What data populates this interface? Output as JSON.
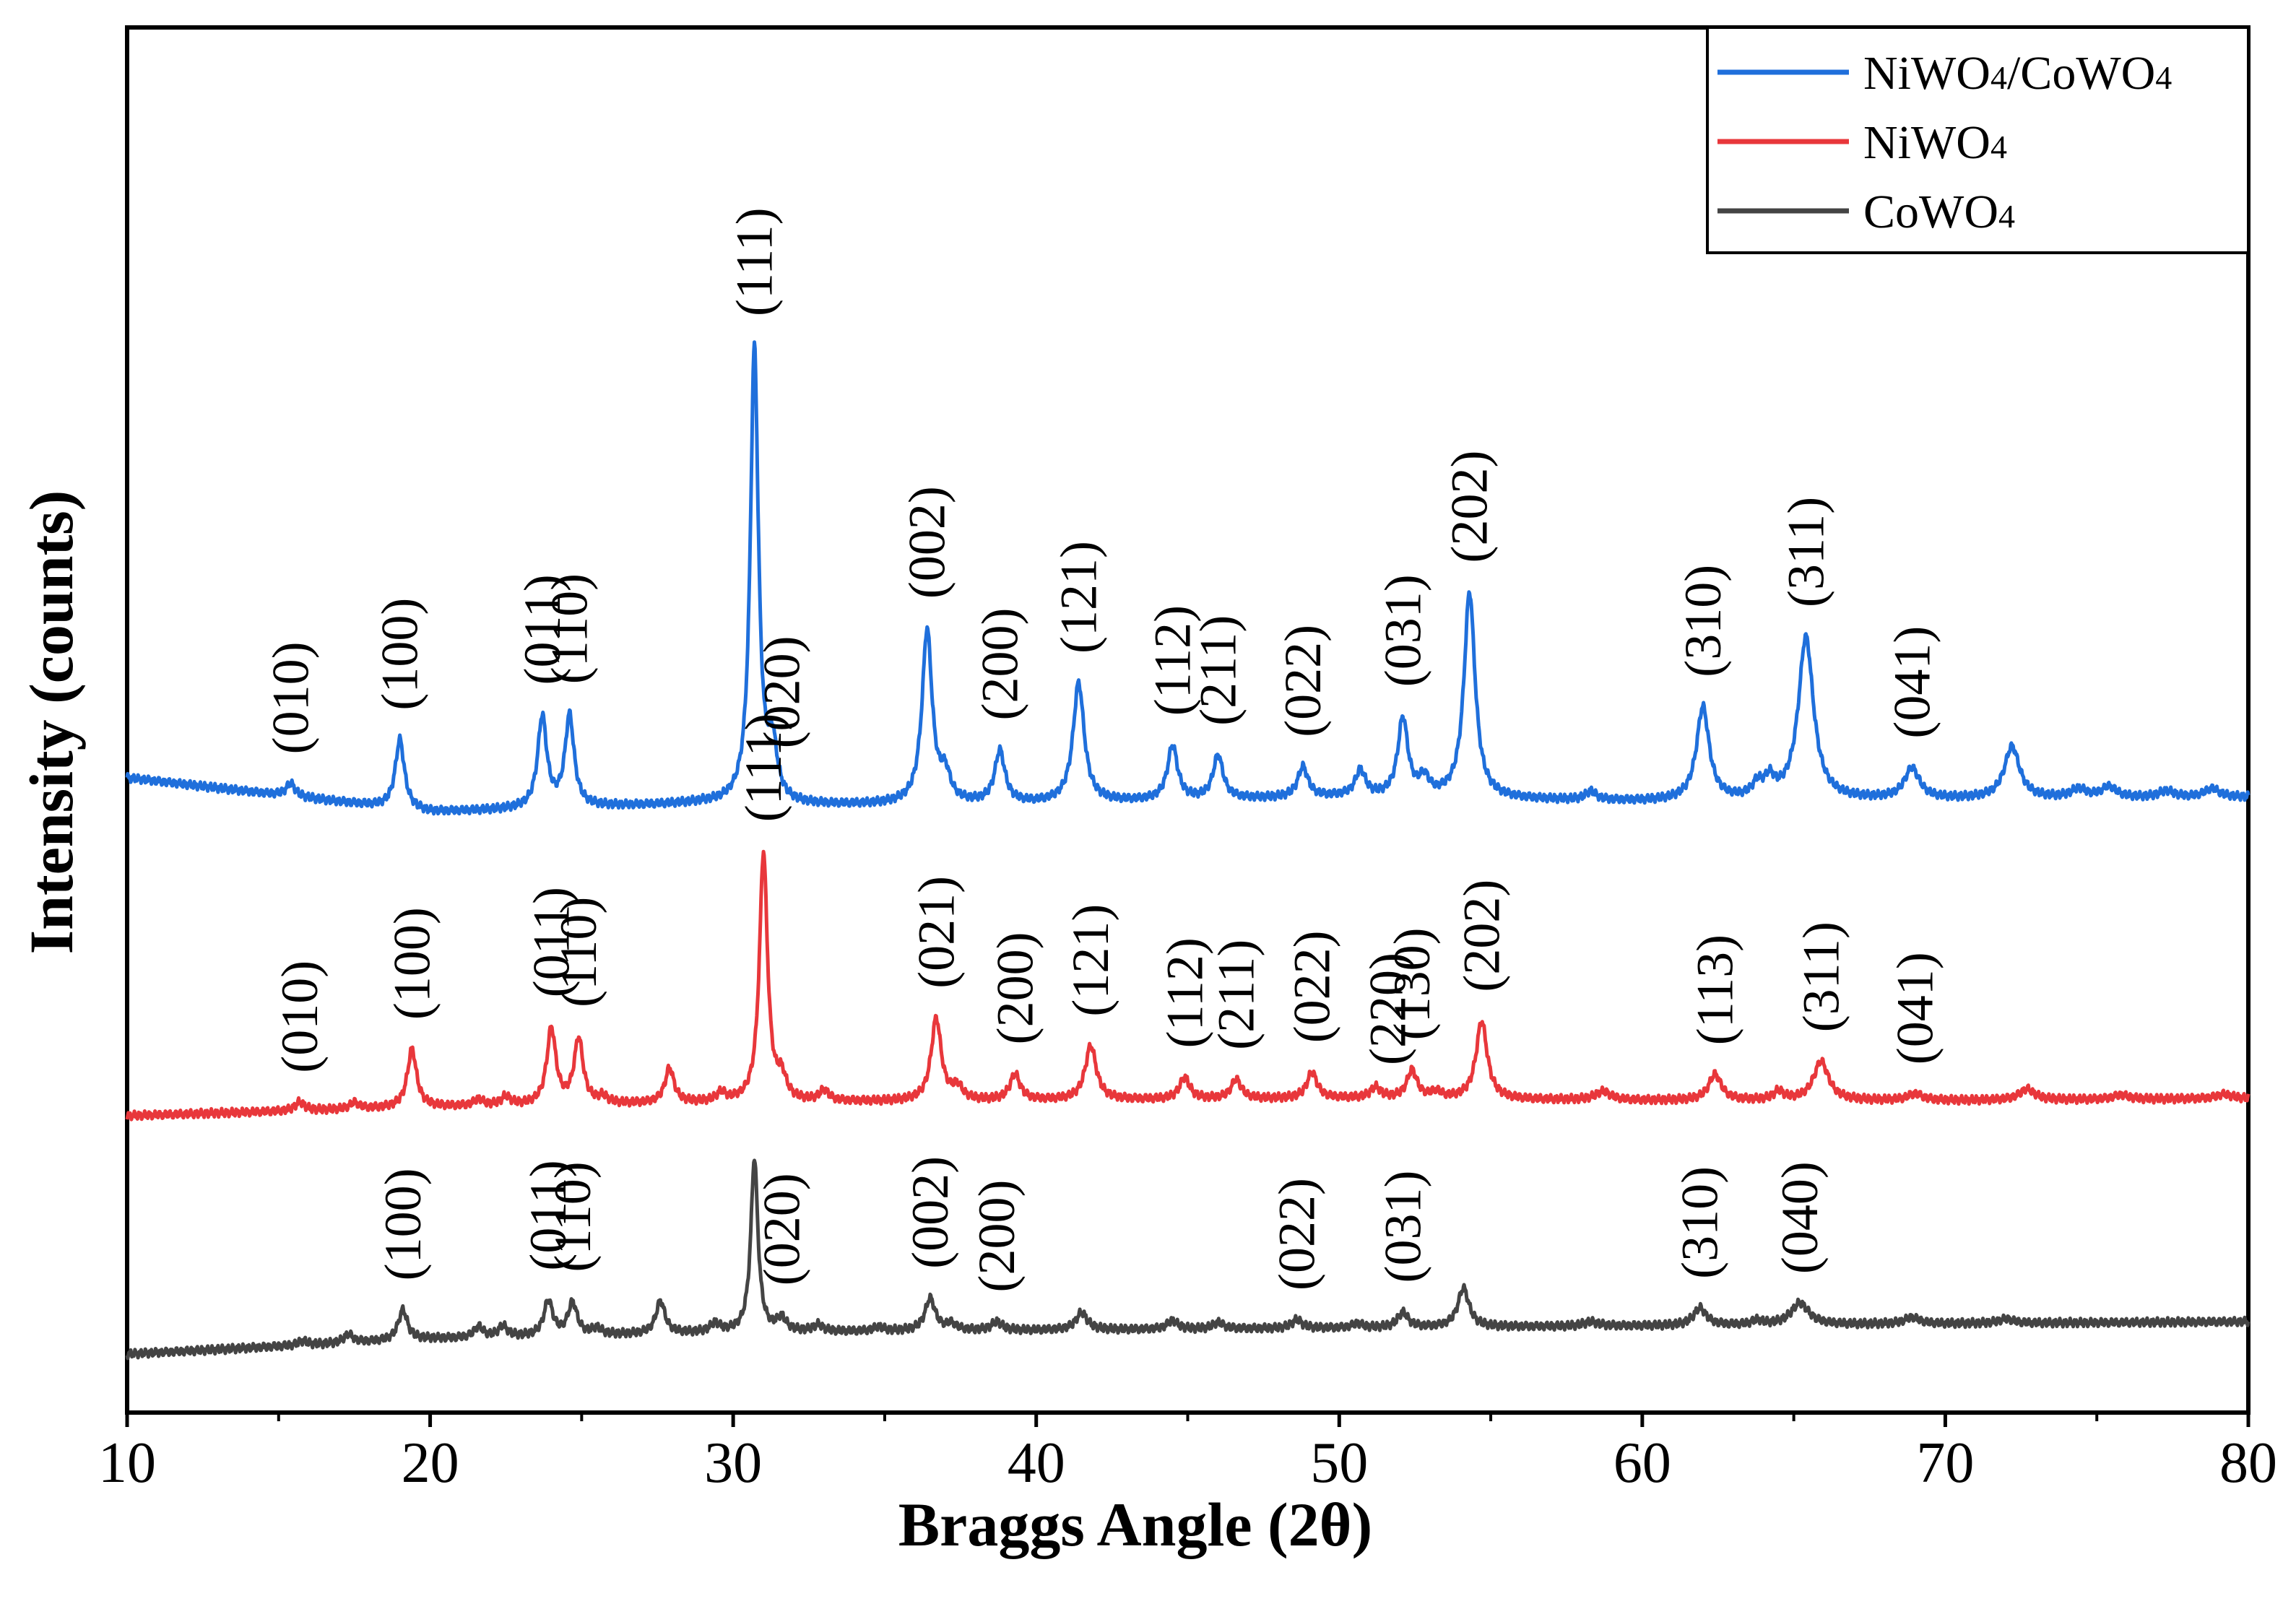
{
  "chart_data": {
    "type": "line",
    "title": "",
    "xlabel": "Braggs Angle (2θ)",
    "ylabel": "Intensity (counts)",
    "xlim": [
      10,
      80
    ],
    "xticks": [
      10,
      20,
      30,
      40,
      50,
      60,
      70,
      80
    ],
    "yticks_shown": false,
    "y_units": "arbitrary, curves vertically offset",
    "legend_position": "top-right",
    "legend": [
      {
        "base": "NiWO",
        "sub": "4",
        "suffix": "/CoWO",
        "sub2": "4",
        "color": "#1f6fdb"
      },
      {
        "base": "NiWO",
        "sub": "4",
        "suffix": "",
        "sub2": "",
        "color": "#e8373b"
      },
      {
        "base": "CoWO",
        "sub": "4",
        "suffix": "",
        "sub2": "",
        "color": "#444444"
      }
    ],
    "series": [
      {
        "name": "NiWO4/CoWO4",
        "color": "#1f6fdb",
        "offset": 2.6,
        "baseline": [
          [
            10,
            0.16
          ],
          [
            20,
            0.0
          ],
          [
            29,
            0.04
          ],
          [
            32,
            0.03
          ],
          [
            40,
            0.04
          ],
          [
            50,
            0.07
          ],
          [
            60,
            0.05
          ],
          [
            70,
            0.06
          ],
          [
            80,
            0.07
          ]
        ],
        "peaks": [
          {
            "x": 15.4,
            "h": 0.06,
            "w": 0.18
          },
          {
            "x": 19.0,
            "h": 0.32,
            "w": 0.18
          },
          {
            "x": 23.7,
            "h": 0.42,
            "w": 0.18
          },
          {
            "x": 24.6,
            "h": 0.42,
            "w": 0.18
          },
          {
            "x": 30.7,
            "h": 2.1,
            "w": 0.16
          },
          {
            "x": 31.3,
            "h": 0.24,
            "w": 0.18
          },
          {
            "x": 36.4,
            "h": 0.8,
            "w": 0.2
          },
          {
            "x": 37.0,
            "h": 0.12,
            "w": 0.2
          },
          {
            "x": 38.8,
            "h": 0.24,
            "w": 0.2
          },
          {
            "x": 41.4,
            "h": 0.55,
            "w": 0.22
          },
          {
            "x": 44.5,
            "h": 0.25,
            "w": 0.2
          },
          {
            "x": 46.0,
            "h": 0.2,
            "w": 0.2
          },
          {
            "x": 48.8,
            "h": 0.14,
            "w": 0.2
          },
          {
            "x": 50.7,
            "h": 0.12,
            "w": 0.2
          },
          {
            "x": 52.1,
            "h": 0.36,
            "w": 0.2
          },
          {
            "x": 52.8,
            "h": 0.08,
            "w": 0.2
          },
          {
            "x": 54.3,
            "h": 0.95,
            "w": 0.22
          },
          {
            "x": 58.3,
            "h": 0.04,
            "w": 0.2
          },
          {
            "x": 62.0,
            "h": 0.43,
            "w": 0.25
          },
          {
            "x": 63.8,
            "h": 0.06,
            "w": 0.2
          },
          {
            "x": 64.2,
            "h": 0.08,
            "w": 0.2
          },
          {
            "x": 65.4,
            "h": 0.75,
            "w": 0.3
          },
          {
            "x": 68.9,
            "h": 0.14,
            "w": 0.3
          },
          {
            "x": 72.2,
            "h": 0.24,
            "w": 0.3
          },
          {
            "x": 74.4,
            "h": 0.04,
            "w": 0.3
          },
          {
            "x": 75.4,
            "h": 0.05,
            "w": 0.3
          },
          {
            "x": 77.3,
            "h": 0.03,
            "w": 0.3
          },
          {
            "x": 78.8,
            "h": 0.04,
            "w": 0.3
          }
        ],
        "labels": [
          {
            "x": 15.4,
            "text": "(010)"
          },
          {
            "x": 19.0,
            "text": "(100)"
          },
          {
            "x": 23.7,
            "text": "(011)"
          },
          {
            "x": 24.6,
            "text": "(110)"
          },
          {
            "x": 30.7,
            "text": "(111)"
          },
          {
            "x": 31.6,
            "text": "(020)"
          },
          {
            "x": 36.4,
            "text": "(002)"
          },
          {
            "x": 38.8,
            "text": "(200)"
          },
          {
            "x": 41.4,
            "text": "(121)"
          },
          {
            "x": 44.5,
            "text": "(112)"
          },
          {
            "x": 46.0,
            "text": "(211)"
          },
          {
            "x": 48.8,
            "text": "(022)"
          },
          {
            "x": 52.1,
            "text": "(031)"
          },
          {
            "x": 54.3,
            "text": "(202)"
          },
          {
            "x": 62.0,
            "text": "(310)"
          },
          {
            "x": 65.4,
            "text": "(311)"
          },
          {
            "x": 68.9,
            "text": "(041)"
          }
        ]
      },
      {
        "name": "NiWO4",
        "color": "#e8373b",
        "offset": 1.2,
        "baseline": [
          [
            10,
            0.0
          ],
          [
            20,
            0.04
          ],
          [
            30,
            0.06
          ],
          [
            40,
            0.07
          ],
          [
            50,
            0.08
          ],
          [
            60,
            0.07
          ],
          [
            70,
            0.07
          ],
          [
            80,
            0.08
          ]
        ],
        "peaks": [
          {
            "x": 15.7,
            "h": 0.04,
            "w": 0.18
          },
          {
            "x": 17.5,
            "h": 0.03,
            "w": 0.18
          },
          {
            "x": 19.4,
            "h": 0.27,
            "w": 0.18
          },
          {
            "x": 21.6,
            "h": 0.03,
            "w": 0.18
          },
          {
            "x": 22.5,
            "h": 0.04,
            "w": 0.18
          },
          {
            "x": 24.0,
            "h": 0.35,
            "w": 0.18
          },
          {
            "x": 24.9,
            "h": 0.3,
            "w": 0.18
          },
          {
            "x": 25.7,
            "h": 0.03,
            "w": 0.18
          },
          {
            "x": 27.9,
            "h": 0.16,
            "w": 0.18
          },
          {
            "x": 29.6,
            "h": 0.04,
            "w": 0.18
          },
          {
            "x": 31.0,
            "h": 1.15,
            "w": 0.16
          },
          {
            "x": 31.6,
            "h": 0.1,
            "w": 0.18
          },
          {
            "x": 33.0,
            "h": 0.05,
            "w": 0.18
          },
          {
            "x": 36.7,
            "h": 0.38,
            "w": 0.2
          },
          {
            "x": 37.4,
            "h": 0.06,
            "w": 0.2
          },
          {
            "x": 39.3,
            "h": 0.12,
            "w": 0.2
          },
          {
            "x": 41.8,
            "h": 0.25,
            "w": 0.22
          },
          {
            "x": 44.9,
            "h": 0.1,
            "w": 0.2
          },
          {
            "x": 46.6,
            "h": 0.09,
            "w": 0.2
          },
          {
            "x": 49.1,
            "h": 0.12,
            "w": 0.2
          },
          {
            "x": 51.2,
            "h": 0.05,
            "w": 0.2
          },
          {
            "x": 52.4,
            "h": 0.13,
            "w": 0.2
          },
          {
            "x": 53.2,
            "h": 0.03,
            "w": 0.2
          },
          {
            "x": 54.7,
            "h": 0.36,
            "w": 0.22
          },
          {
            "x": 58.7,
            "h": 0.04,
            "w": 0.3
          },
          {
            "x": 62.4,
            "h": 0.12,
            "w": 0.25
          },
          {
            "x": 64.5,
            "h": 0.04,
            "w": 0.2
          },
          {
            "x": 65.9,
            "h": 0.18,
            "w": 0.3
          },
          {
            "x": 69.0,
            "h": 0.03,
            "w": 0.3
          },
          {
            "x": 72.7,
            "h": 0.05,
            "w": 0.3
          },
          {
            "x": 75.8,
            "h": 0.02,
            "w": 0.3
          },
          {
            "x": 79.2,
            "h": 0.02,
            "w": 0.3
          }
        ],
        "labels": [
          {
            "x": 15.7,
            "text": "(010)"
          },
          {
            "x": 19.4,
            "text": "(100)"
          },
          {
            "x": 24.0,
            "text": "(011)"
          },
          {
            "x": 24.9,
            "text": "(110)"
          },
          {
            "x": 31.0,
            "text": "(111)"
          },
          {
            "x": 36.7,
            "text": "(021)"
          },
          {
            "x": 39.3,
            "text": "(200)"
          },
          {
            "x": 41.8,
            "text": "(121)"
          },
          {
            "x": 44.9,
            "text": "(112)"
          },
          {
            "x": 46.6,
            "text": "(211)"
          },
          {
            "x": 49.1,
            "text": "(022)"
          },
          {
            "x": 51.6,
            "text": "(220)"
          },
          {
            "x": 52.4,
            "text": "(130)"
          },
          {
            "x": 54.7,
            "text": "(202)"
          },
          {
            "x": 62.4,
            "text": "(113)"
          },
          {
            "x": 65.9,
            "text": "(311)"
          },
          {
            "x": 69.0,
            "text": "(041)"
          }
        ]
      },
      {
        "name": "CoWO4",
        "color": "#444444",
        "offset": 0.0,
        "baseline": [
          [
            10,
            0.1
          ],
          [
            20,
            0.17
          ],
          [
            30,
            0.2
          ],
          [
            40,
            0.21
          ],
          [
            50,
            0.22
          ],
          [
            60,
            0.23
          ],
          [
            70,
            0.24
          ],
          [
            80,
            0.25
          ]
        ],
        "peaks": [
          {
            "x": 15.8,
            "h": 0.02,
            "w": 0.18
          },
          {
            "x": 17.3,
            "h": 0.04,
            "w": 0.18
          },
          {
            "x": 19.1,
            "h": 0.14,
            "w": 0.18
          },
          {
            "x": 21.6,
            "h": 0.05,
            "w": 0.18
          },
          {
            "x": 22.4,
            "h": 0.05,
            "w": 0.18
          },
          {
            "x": 23.9,
            "h": 0.16,
            "w": 0.18
          },
          {
            "x": 24.7,
            "h": 0.15,
            "w": 0.18
          },
          {
            "x": 25.5,
            "h": 0.03,
            "w": 0.18
          },
          {
            "x": 27.6,
            "h": 0.15,
            "w": 0.18
          },
          {
            "x": 29.4,
            "h": 0.04,
            "w": 0.18
          },
          {
            "x": 30.7,
            "h": 0.8,
            "w": 0.14
          },
          {
            "x": 31.6,
            "h": 0.06,
            "w": 0.18
          },
          {
            "x": 32.8,
            "h": 0.03,
            "w": 0.18
          },
          {
            "x": 34.8,
            "h": 0.02,
            "w": 0.18
          },
          {
            "x": 36.5,
            "h": 0.15,
            "w": 0.2
          },
          {
            "x": 37.2,
            "h": 0.03,
            "w": 0.2
          },
          {
            "x": 38.7,
            "h": 0.04,
            "w": 0.2
          },
          {
            "x": 41.5,
            "h": 0.08,
            "w": 0.22
          },
          {
            "x": 44.5,
            "h": 0.04,
            "w": 0.2
          },
          {
            "x": 46.0,
            "h": 0.03,
            "w": 0.2
          },
          {
            "x": 48.6,
            "h": 0.04,
            "w": 0.2
          },
          {
            "x": 50.6,
            "h": 0.02,
            "w": 0.2
          },
          {
            "x": 52.1,
            "h": 0.07,
            "w": 0.2
          },
          {
            "x": 54.1,
            "h": 0.18,
            "w": 0.22
          },
          {
            "x": 58.3,
            "h": 0.02,
            "w": 0.3
          },
          {
            "x": 61.9,
            "h": 0.08,
            "w": 0.25
          },
          {
            "x": 63.8,
            "h": 0.02,
            "w": 0.2
          },
          {
            "x": 65.2,
            "h": 0.1,
            "w": 0.35
          },
          {
            "x": 68.9,
            "h": 0.03,
            "w": 0.3
          },
          {
            "x": 72.0,
            "h": 0.02,
            "w": 0.3
          }
        ],
        "labels": [
          {
            "x": 19.1,
            "text": "(100)"
          },
          {
            "x": 23.9,
            "text": "(011)"
          },
          {
            "x": 24.7,
            "text": "(110)"
          },
          {
            "x": 31.6,
            "text": "(020)"
          },
          {
            "x": 36.5,
            "text": "(002)"
          },
          {
            "x": 38.7,
            "text": "(200)"
          },
          {
            "x": 48.6,
            "text": "(022)"
          },
          {
            "x": 52.1,
            "text": "(031)"
          },
          {
            "x": 61.9,
            "text": "(310)"
          },
          {
            "x": 65.2,
            "text": "(040)"
          }
        ]
      }
    ]
  }
}
